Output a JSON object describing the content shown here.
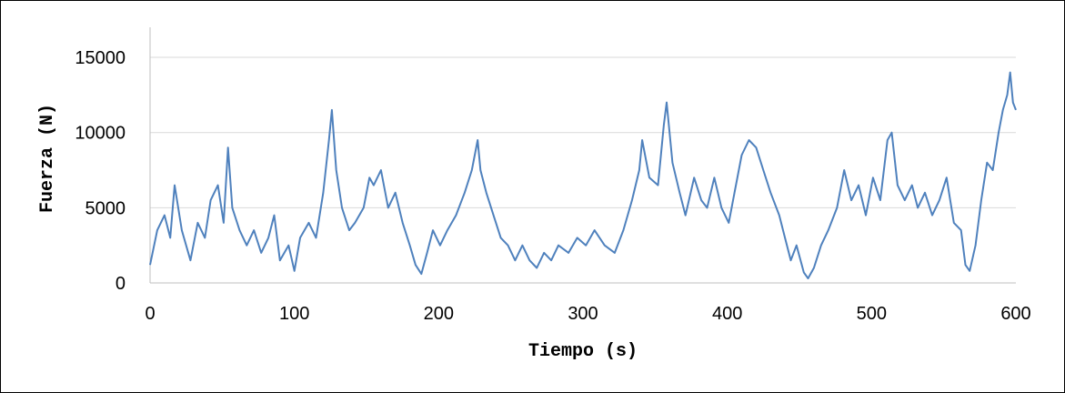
{
  "chart_data": {
    "type": "line",
    "xlabel": "Tiempo (s)",
    "ylabel": "Fuerza (N)",
    "xlim": [
      0,
      600
    ],
    "ylim": [
      0,
      17000
    ],
    "xticks": [
      0,
      100,
      200,
      300,
      400,
      500,
      600
    ],
    "yticks": [
      0,
      5000,
      10000,
      15000
    ],
    "xtick_labels": [
      "0",
      "100",
      "200",
      "300",
      "400",
      "500",
      "600"
    ],
    "ytick_labels": [
      "0",
      "5000",
      "10000",
      "15000"
    ],
    "grid": "horizontal",
    "series": [
      {
        "color": "#4f81bd",
        "x": [
          0,
          5,
          10,
          14,
          17,
          22,
          28,
          33,
          38,
          42,
          47,
          51,
          54,
          57,
          62,
          67,
          72,
          77,
          82,
          86,
          90,
          96,
          100,
          104,
          110,
          115,
          120,
          124,
          126,
          129,
          133,
          138,
          142,
          148,
          152,
          155,
          160,
          165,
          170,
          175,
          180,
          184,
          188,
          192,
          196,
          201,
          206,
          212,
          218,
          223,
          227,
          229,
          233,
          238,
          243,
          248,
          253,
          258,
          263,
          268,
          273,
          278,
          283,
          290,
          296,
          302,
          308,
          315,
          322,
          328,
          334,
          339,
          341,
          346,
          352,
          356,
          358,
          362,
          367,
          371,
          377,
          382,
          386,
          391,
          396,
          401,
          405,
          410,
          415,
          420,
          425,
          430,
          436,
          440,
          444,
          448,
          453,
          456,
          460,
          465,
          470,
          476,
          481,
          486,
          491,
          496,
          501,
          506,
          511,
          514,
          518,
          523,
          528,
          532,
          537,
          542,
          547,
          552,
          557,
          562,
          565,
          568,
          572,
          576,
          580,
          584,
          588,
          591,
          594,
          596,
          598,
          600
        ],
        "values": [
          1200,
          3500,
          4500,
          3000,
          6500,
          3500,
          1500,
          4000,
          3000,
          5500,
          6500,
          4000,
          9000,
          5000,
          3500,
          2500,
          3500,
          2000,
          3000,
          4500,
          1500,
          2500,
          800,
          3000,
          4000,
          3000,
          6000,
          9500,
          11500,
          7500,
          5000,
          3500,
          4000,
          5000,
          7000,
          6500,
          7500,
          5000,
          6000,
          4000,
          2500,
          1200,
          600,
          2000,
          3500,
          2500,
          3500,
          4500,
          6000,
          7500,
          9500,
          7500,
          6000,
          4500,
          3000,
          2500,
          1500,
          2500,
          1500,
          1000,
          2000,
          1500,
          2500,
          2000,
          3000,
          2500,
          3500,
          2500,
          2000,
          3500,
          5500,
          7500,
          9500,
          7000,
          6500,
          10500,
          12000,
          8000,
          6000,
          4500,
          7000,
          5500,
          5000,
          7000,
          5000,
          4000,
          6000,
          8500,
          9500,
          9000,
          7500,
          6000,
          4500,
          3000,
          1500,
          2500,
          700,
          300,
          1000,
          2500,
          3500,
          5000,
          7500,
          5500,
          6500,
          4500,
          7000,
          5500,
          9500,
          10000,
          6500,
          5500,
          6500,
          5000,
          6000,
          4500,
          5500,
          7000,
          4000,
          3500,
          1200,
          800,
          2500,
          5500,
          8000,
          7500,
          10000,
          11500,
          12500,
          14000,
          12000,
          11500
        ]
      }
    ]
  }
}
